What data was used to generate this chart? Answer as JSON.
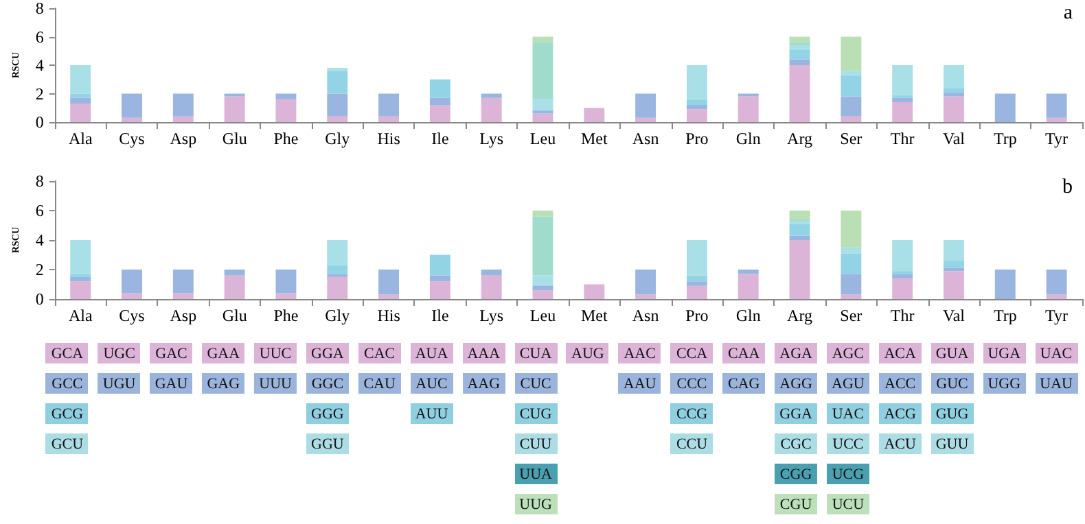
{
  "chart_data": [
    {
      "type": "bar",
      "title": "a",
      "ylabel": "RSCU",
      "stacked": true,
      "categories": [
        "Ala",
        "Cys",
        "Asp",
        "Glu",
        "Phe",
        "Gly",
        "His",
        "Ile",
        "Lys",
        "Leu",
        "Met",
        "Asn",
        "Pro",
        "Gln",
        "Arg",
        "Ser",
        "Thr",
        "Val",
        "Trp",
        "Tyr"
      ],
      "ylim": [
        0,
        8
      ],
      "yticks": [
        0,
        2,
        4,
        6,
        8
      ],
      "series": [
        {
          "color": "#dcb4d8",
          "values": [
            1.3,
            0.3,
            0.4,
            1.8,
            1.6,
            0.4,
            0.4,
            1.2,
            1.7,
            0.6,
            1,
            0.3,
            0.9,
            1.8,
            4,
            0.4,
            1.4,
            1.8,
            0,
            0.3
          ]
        },
        {
          "color": "#9ab5e0",
          "values": [
            0.4,
            1.7,
            1.6,
            0.2,
            0.4,
            1.6,
            1.6,
            0.5,
            0.3,
            0.2,
            null,
            1.7,
            0.3,
            0.2,
            0.4,
            1.4,
            0.3,
            0.3,
            2,
            1.7
          ]
        },
        {
          "color": "#92d3e6",
          "values": [
            0.3,
            null,
            null,
            null,
            null,
            1.6,
            null,
            1.3,
            null,
            0.1,
            null,
            null,
            0.4,
            null,
            0.7,
            1.5,
            0.2,
            0.3,
            null,
            null
          ]
        },
        {
          "color": "#a9e0e8",
          "values": [
            2,
            null,
            null,
            null,
            null,
            0.2,
            null,
            null,
            null,
            0.7,
            null,
            null,
            2.4,
            null,
            0.3,
            0.3,
            2.1,
            1.6,
            null,
            null
          ]
        },
        {
          "color": "#a0dccc",
          "values": [
            null,
            null,
            null,
            null,
            null,
            null,
            null,
            null,
            null,
            4,
            null,
            null,
            null,
            null,
            0.2,
            0,
            null,
            null,
            null,
            null
          ]
        },
        {
          "color": "#b9dfb5",
          "values": [
            null,
            null,
            null,
            null,
            null,
            null,
            null,
            null,
            null,
            0.4,
            null,
            null,
            null,
            null,
            0.4,
            2.4,
            null,
            null,
            null,
            null
          ]
        }
      ]
    },
    {
      "type": "bar",
      "title": "b",
      "ylabel": "RSCU",
      "stacked": true,
      "categories": [
        "Ala",
        "Cys",
        "Asp",
        "Glu",
        "Phe",
        "Gly",
        "His",
        "Ile",
        "Lys",
        "Leu",
        "Met",
        "Asn",
        "Pro",
        "Gln",
        "Arg",
        "Ser",
        "Thr",
        "Val",
        "Trp",
        "Tyr"
      ],
      "ylim": [
        0,
        8
      ],
      "yticks": [
        0,
        2,
        4,
        6,
        8
      ],
      "series": [
        {
          "color": "#dcb4d8",
          "values": [
            1.2,
            0.4,
            0.4,
            1.6,
            0.4,
            1.5,
            0.3,
            1.2,
            1.6,
            0.6,
            1,
            0.3,
            0.9,
            1.7,
            4,
            0.3,
            1.4,
            1.9,
            0,
            0.3
          ]
        },
        {
          "color": "#9ab5e0",
          "values": [
            0.3,
            1.6,
            1.6,
            0.4,
            1.6,
            0.2,
            1.7,
            0.4,
            0.4,
            0.3,
            null,
            1.7,
            0.3,
            0.3,
            0.3,
            1.4,
            0.3,
            0.2,
            2,
            1.7
          ]
        },
        {
          "color": "#92d3e6",
          "values": [
            0.2,
            null,
            null,
            null,
            null,
            0.6,
            null,
            1.4,
            null,
            0.1,
            null,
            null,
            0.4,
            null,
            0.8,
            1.4,
            0.2,
            0.5,
            null,
            null
          ]
        },
        {
          "color": "#a9e0e8",
          "values": [
            2.3,
            null,
            null,
            null,
            null,
            1.7,
            null,
            null,
            null,
            0.6,
            null,
            null,
            2.4,
            null,
            0.2,
            0.4,
            2.1,
            1.4,
            null,
            null
          ]
        },
        {
          "color": "#a0dccc",
          "values": [
            null,
            null,
            null,
            null,
            null,
            null,
            null,
            null,
            null,
            4,
            null,
            null,
            null,
            null,
            0.1,
            0,
            null,
            null,
            null,
            null
          ]
        },
        {
          "color": "#b9dfb5",
          "values": [
            null,
            null,
            null,
            null,
            null,
            null,
            null,
            null,
            null,
            0.4,
            null,
            null,
            null,
            null,
            0.6,
            2.5,
            null,
            null,
            null,
            null
          ]
        }
      ]
    },
    {
      "type": "other",
      "colors": [
        "#dcb4d8",
        "#9bb4dc",
        "#8fcfe0",
        "#acdce4",
        "#4a9fb0",
        "#bde0bb"
      ],
      "cell_labels": [
        [
          "GCA",
          "UGC",
          "GAC",
          "GAA",
          "UUC",
          "GGA",
          "CAC",
          "AUA",
          "AAA",
          "CUA",
          "AUG",
          "AAC",
          "CCA",
          "CAA",
          "AGA",
          "AGC",
          "ACA",
          "GUA",
          "UGA",
          "UAC"
        ],
        [
          "GCC",
          "UGU",
          "GAU",
          "GAG",
          "UUU",
          "GGC",
          "CAU",
          "AUC",
          "AAG",
          "CUC",
          null,
          "AAU",
          "CCC",
          "CAG",
          "AGG",
          "AGU",
          "ACC",
          "GUC",
          "UGG",
          "UAU"
        ],
        [
          "GCG",
          null,
          null,
          null,
          null,
          "GGG",
          null,
          "AUU",
          null,
          "CUG",
          null,
          null,
          "CCG",
          null,
          "GGA",
          "UAC",
          "ACG",
          "GUG",
          null,
          null
        ],
        [
          "GCU",
          null,
          null,
          null,
          null,
          "GGU",
          null,
          null,
          null,
          "CUU",
          null,
          null,
          "CCU",
          null,
          "CGC",
          "UCC",
          "ACU",
          "GUU",
          null,
          null
        ],
        [
          null,
          null,
          null,
          null,
          null,
          null,
          null,
          null,
          null,
          "UUA",
          null,
          null,
          null,
          null,
          "CGG",
          "UCG",
          null,
          null,
          null,
          null
        ],
        [
          null,
          null,
          null,
          null,
          null,
          null,
          null,
          null,
          null,
          "UUG",
          null,
          null,
          null,
          null,
          "CGU",
          "UCU",
          null,
          null,
          null,
          null
        ]
      ]
    }
  ]
}
